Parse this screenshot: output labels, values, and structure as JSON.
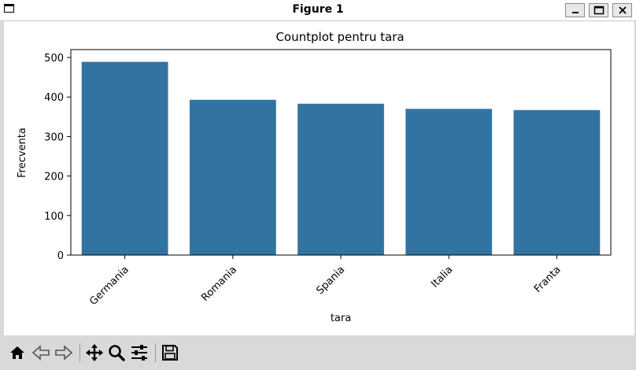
{
  "window": {
    "title": "Figure 1"
  },
  "toolbar": {
    "tools": [
      "home-icon",
      "back-arrow-icon",
      "forward-arrow-icon",
      "pan-icon",
      "zoom-icon",
      "configure-subplots-icon",
      "save-icon"
    ]
  },
  "chart_data": {
    "type": "bar",
    "title": "Countplot pentru tara",
    "xlabel": "tara",
    "ylabel": "Frecventa",
    "categories": [
      "Germania",
      "Romania",
      "Spania",
      "Italia",
      "Franta"
    ],
    "values": [
      489,
      393,
      383,
      370,
      367
    ],
    "ylim": [
      0,
      520
    ],
    "yticks": [
      0,
      100,
      200,
      300,
      400,
      500
    ],
    "bar_color": "#3274a1",
    "grid": false,
    "legend": "none"
  }
}
